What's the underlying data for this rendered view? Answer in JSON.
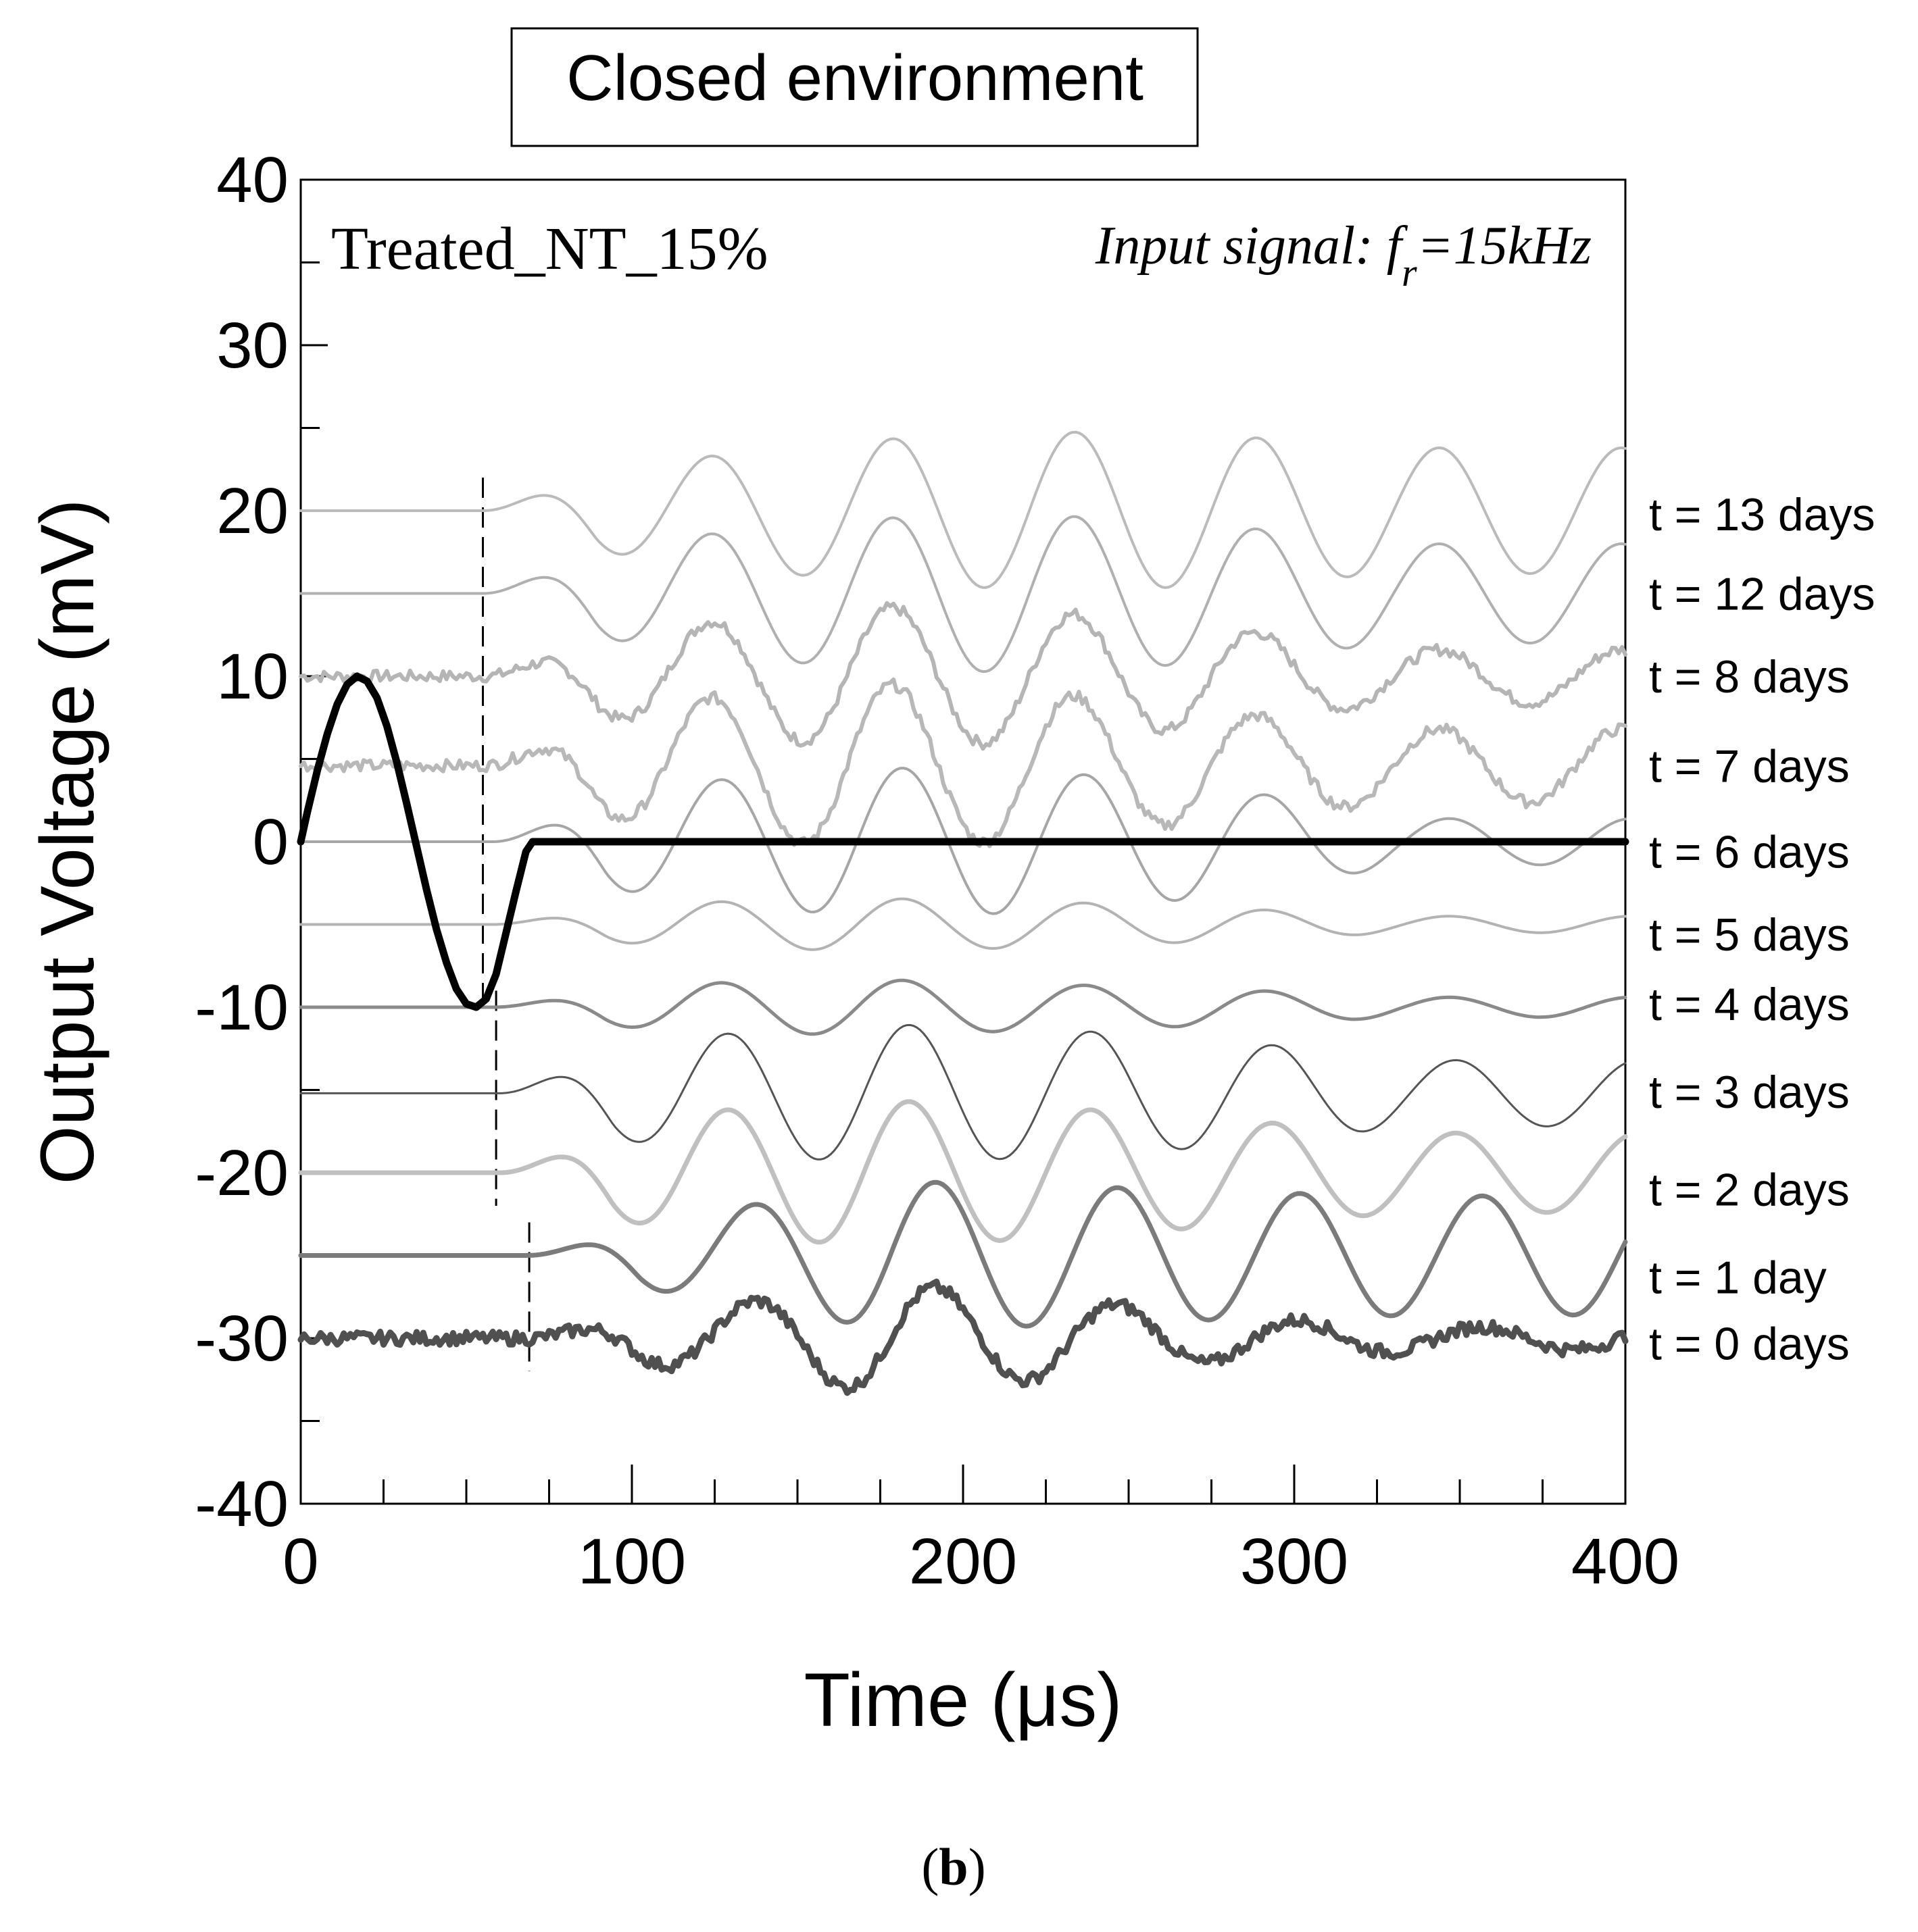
{
  "chart_data": {
    "type": "line",
    "title": "Closed environment",
    "panel_label": "Treated_NT_15%",
    "input_signal_label": "Input signal: f",
    "input_signal_sub": "r",
    "input_signal_value": "=15kHz",
    "xlabel": "Time (μs)",
    "ylabel": "Output Voltage (mV)",
    "xlim": [
      0,
      400
    ],
    "ylim": [
      -40,
      40
    ],
    "xticks": [
      "0",
      "100",
      "200",
      "300",
      "400"
    ],
    "yticks": [
      "-40",
      "-30",
      "-20",
      "-10",
      "0",
      "10",
      "20",
      "30",
      "40"
    ],
    "caption_open": "(",
    "caption_letter": "b",
    "caption_close": ")",
    "input_signal": {
      "name": "Input signal",
      "color": "#000000",
      "x": [
        0,
        2,
        5,
        8,
        11,
        14,
        17,
        20,
        23,
        26,
        29,
        32,
        35,
        38,
        41,
        44,
        47,
        50,
        53,
        56,
        59,
        62,
        65,
        68,
        70,
        400
      ],
      "y": [
        0,
        1.8,
        4.3,
        6.5,
        8.3,
        9.5,
        10,
        9.7,
        8.7,
        7.0,
        4.8,
        2.3,
        -0.3,
        -2.9,
        -5.3,
        -7.3,
        -8.9,
        -9.8,
        -10,
        -9.5,
        -8.0,
        -5.5,
        -3.0,
        -0.6,
        0,
        0
      ]
    },
    "series": [
      {
        "name": "t = 13 days",
        "offset": 20,
        "onset": 55,
        "amps": [
          1.5,
          3.0,
          4.2,
          4.8,
          4.6,
          3.8
        ],
        "color": "#bbbbbb",
        "width": 4,
        "noise": 0
      },
      {
        "name": "t = 12 days",
        "offset": 15,
        "onset": 55,
        "amps": [
          1.5,
          3.3,
          4.5,
          4.8,
          4.2,
          3.0
        ],
        "color": "#b0b0b0",
        "width": 4,
        "noise": 0
      },
      {
        "name": "t = 8 days",
        "offset": 10,
        "onset": 55,
        "amps": [
          1.2,
          3.0,
          4.2,
          4.0,
          3.0,
          1.6
        ],
        "color": "#b5b5b5",
        "width": 6,
        "noise": 0.35
      },
      {
        "name": "t = 7 days",
        "offset": 4.6,
        "onset": 55,
        "amps": [
          1.4,
          3.8,
          5.0,
          4.5,
          3.3,
          2.2
        ],
        "color": "#b8b8b8",
        "width": 6,
        "noise": 0.35
      },
      {
        "name": "t = 6 days",
        "offset": 0,
        "onset": 58,
        "amps": [
          1.5,
          3.5,
          4.5,
          4.3,
          3.3,
          1.4
        ],
        "color": "#a6a6a6",
        "width": 4,
        "noise": 0
      },
      {
        "name": "t = 5 days",
        "offset": -5,
        "onset": 58,
        "amps": [
          0.6,
          1.3,
          1.6,
          1.4,
          1.0,
          0.5
        ],
        "color": "#b3b3b3",
        "width": 4,
        "noise": 0
      },
      {
        "name": "t = 4 days",
        "offset": -10,
        "onset": 58,
        "amps": [
          0.6,
          1.4,
          1.7,
          1.4,
          1.1,
          0.6
        ],
        "color": "#8a8a8a",
        "width": 5,
        "noise": 0
      },
      {
        "name": "t = 3 days",
        "offset": -15.2,
        "onset": 60,
        "amps": [
          1.5,
          3.4,
          4.2,
          3.9,
          3.2,
          2.0
        ],
        "color": "#555555",
        "width": 3,
        "noise": 0
      },
      {
        "name": "t = 2 days",
        "offset": -20,
        "onset": 60,
        "amps": [
          1.3,
          3.6,
          4.4,
          4.0,
          3.2,
          2.4
        ],
        "color": "#c0c0c0",
        "width": 7,
        "noise": 0
      },
      {
        "name": "t = 1 day",
        "offset": -25,
        "onset": 68,
        "amps": [
          0.8,
          2.6,
          4.5,
          4.2,
          3.8,
          3.6
        ],
        "color": "#7b7b7b",
        "width": 7,
        "noise": 0
      },
      {
        "name": "t = 0 days",
        "offset": -30,
        "onset": 68,
        "amps": [
          0.8,
          1.9,
          3.3,
          2.3,
          1.2,
          0.7
        ],
        "color": "#505050",
        "width": 9,
        "noise": 0.4
      }
    ],
    "wave_period_us": 55,
    "onset_markers_us": [
      55,
      59,
      69
    ],
    "label_y_positions": [
      19.8,
      15.0,
      10.0,
      4.6,
      -0.6,
      -5.6,
      -9.8,
      -15.1,
      -21.0,
      -26.3,
      -30.3
    ]
  }
}
